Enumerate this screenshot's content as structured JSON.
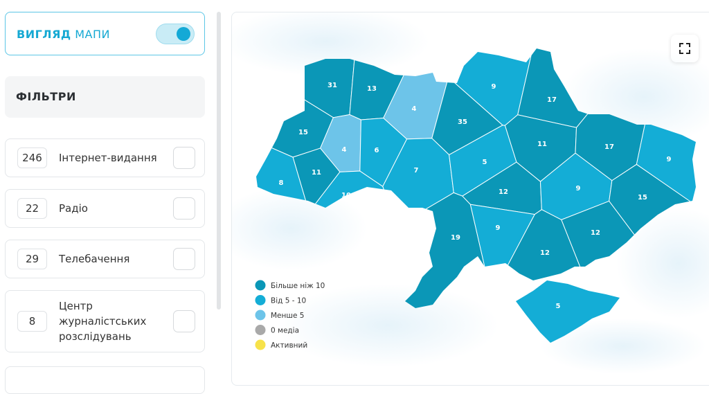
{
  "view_toggle": {
    "title_bold": "ВИГЛЯД",
    "title_rest": "МАПИ"
  },
  "filters": {
    "title": "ФІЛЬТРИ",
    "items": [
      {
        "count": 246,
        "label": "Інтернет-видання"
      },
      {
        "count": 22,
        "label": "Радіо"
      },
      {
        "count": 29,
        "label": "Телебачення"
      },
      {
        "count": 8,
        "label": "Центр журналістських розслідувань"
      }
    ]
  },
  "map": {
    "regions": [
      {
        "value": 31,
        "color": "#0b97b7"
      },
      {
        "value": 13,
        "color": "#0b97b7"
      },
      {
        "value": 4,
        "color": "#6dc4e9"
      },
      {
        "value": 9,
        "color": "#14add6"
      },
      {
        "value": 17,
        "color": "#0b97b7"
      },
      {
        "value": 15,
        "color": "#0b97b7"
      },
      {
        "value": 4,
        "color": "#6dc4e9"
      },
      {
        "value": 6,
        "color": "#14add6"
      },
      {
        "value": 35,
        "color": "#0b97b7"
      },
      {
        "value": 11,
        "color": "#0b97b7"
      },
      {
        "value": 17,
        "color": "#0b97b7"
      },
      {
        "value": 9,
        "color": "#14add6"
      },
      {
        "value": 8,
        "color": "#14add6"
      },
      {
        "value": 11,
        "color": "#0b97b7"
      },
      {
        "value": 7,
        "color": "#14add6"
      },
      {
        "value": 5,
        "color": "#14add6"
      },
      {
        "value": 10,
        "color": "#14add6"
      },
      {
        "value": 12,
        "color": "#0b97b7"
      },
      {
        "value": 9,
        "color": "#14add6"
      },
      {
        "value": 15,
        "color": "#0b97b7"
      },
      {
        "value": 19,
        "color": "#0b97b7"
      },
      {
        "value": 9,
        "color": "#14add6"
      },
      {
        "value": 12,
        "color": "#0b97b7"
      },
      {
        "value": 12,
        "color": "#0b97b7"
      },
      {
        "value": 5,
        "color": "#14add6"
      }
    ],
    "legend": [
      {
        "label": "Більше ніж 10",
        "color": "#0b97b7"
      },
      {
        "label": "Від 5 - 10",
        "color": "#14add6"
      },
      {
        "label": "Менше 5",
        "color": "#6dc4e9"
      },
      {
        "label": "0 медіа",
        "color": "#a9a9a9"
      },
      {
        "label": "Активний",
        "color": "#f7e24a"
      }
    ]
  }
}
